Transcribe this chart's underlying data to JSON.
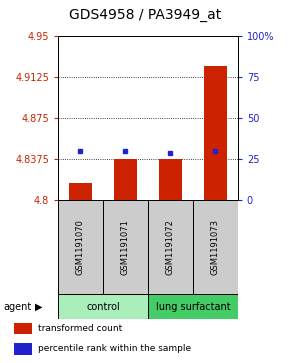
{
  "title": "GDS4958 / PA3949_at",
  "samples": [
    "GSM1191070",
    "GSM1191071",
    "GSM1191072",
    "GSM1191073"
  ],
  "bar_values": [
    4.815,
    4.8375,
    4.8375,
    4.9225
  ],
  "percentile_values": [
    4.845,
    4.845,
    4.843,
    4.845
  ],
  "ylim_left": [
    4.8,
    4.95
  ],
  "yticks_left": [
    4.8,
    4.8375,
    4.875,
    4.9125,
    4.95
  ],
  "ytick_labels_left": [
    "4.8",
    "4.8375",
    "4.875",
    "4.9125",
    "4.95"
  ],
  "ylim_right": [
    0,
    100
  ],
  "yticks_right": [
    0,
    25,
    50,
    75,
    100
  ],
  "ytick_labels_right": [
    "0",
    "25",
    "50",
    "75",
    "100%"
  ],
  "hlines": [
    4.8375,
    4.875,
    4.9125
  ],
  "bar_color": "#cc2200",
  "percentile_color": "#2222cc",
  "bar_bottom": 4.8,
  "groups": [
    {
      "label": "control",
      "indices": [
        0,
        1
      ],
      "color": "#aaeebb"
    },
    {
      "label": "lung surfactant",
      "indices": [
        2,
        3
      ],
      "color": "#44cc66"
    }
  ],
  "agent_label": "agent",
  "legend_items": [
    {
      "color": "#cc2200",
      "label": "transformed count"
    },
    {
      "color": "#2222cc",
      "label": "percentile rank within the sample"
    }
  ],
  "background_color": "#ffffff",
  "plot_bg_color": "#ffffff",
  "sample_box_color": "#cccccc",
  "title_fontsize": 10,
  "tick_fontsize": 7,
  "bar_width": 0.5
}
